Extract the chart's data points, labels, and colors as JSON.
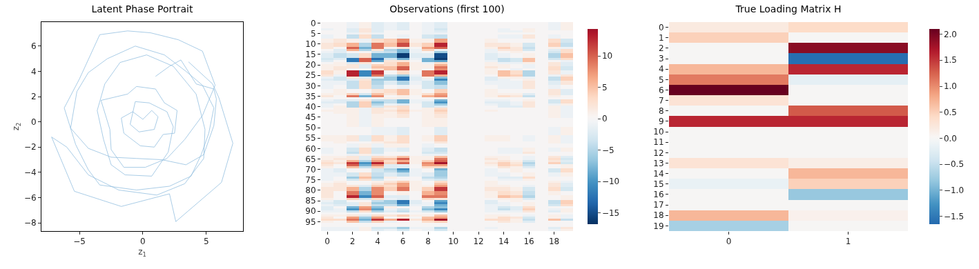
{
  "chart_data": [
    {
      "type": "line",
      "title": "Latent Phase Portrait",
      "xlabel": "z$_{1}$",
      "ylabel": "z$_{2}$",
      "color": "#93bfdf",
      "x": [
        1.0,
        2.1,
        3.0,
        4.2,
        5.6,
        5.8,
        5.6,
        4.8,
        3.4,
        1.5,
        -0.5,
        -2.5,
        -4.3,
        -5.7,
        -5.2,
        -4.3,
        -2.8,
        -0.6,
        1.7,
        3.4,
        4.7,
        5.6,
        5.2,
        4.6,
        3.8,
        2.1,
        -0.5,
        -3.4,
        -4.3,
        -5.3,
        -6.2,
        -5.0,
        -3.4,
        -1.2,
        0.6,
        2.8,
        4.7,
        5.7,
        4.7,
        3.3,
        1.9,
        0.2,
        -1.5,
        -2.5,
        -2.6,
        -3.3,
        -1.2,
        -0.5,
        1.0,
        1.7,
        2.7,
        2.5,
        1.6,
        0.9,
        -0.2,
        -1.5,
        -1.7,
        -0.8,
        0.0,
        0.7,
        1.2,
        0.9,
        -0.3,
        -1.0,
        -0.6,
        0.5,
        1.9,
        2.4,
        2.0,
        0.7,
        -1.4,
        -2.5,
        -3.1,
        -3.6,
        -3.0,
        -1.8,
        0.3,
        2.4,
        4.2,
        4.9,
        4.8,
        3.3,
        1.1,
        -1.9,
        -4.3,
        -6.0,
        -7.2,
        -5.4,
        -1.7,
        2.1,
        2.6,
        6.2,
        7.1,
        6.0,
        5.5,
        3.6
      ],
      "values": [
        3.6,
        4.4,
        4.9,
        3.0,
        2.6,
        1.8,
        -0.3,
        -2.6,
        -3.4,
        -3.0,
        -2.9,
        -2.8,
        -2.1,
        -0.5,
        2.4,
        3.9,
        5.0,
        6.0,
        5.3,
        4.0,
        2.9,
        1.1,
        -0.9,
        -2.6,
        -4.3,
        -5.1,
        -5.4,
        -5.0,
        -3.8,
        -1.8,
        1.1,
        3.4,
        6.9,
        7.2,
        7.05,
        6.5,
        5.6,
        2.9,
        0.5,
        -1.4,
        -2.9,
        -3.6,
        -3.6,
        -2.2,
        -0.6,
        1.7,
        2.2,
        2.8,
        2.6,
        1.5,
        0.9,
        -0.9,
        -1.0,
        -2.0,
        -1.9,
        -0.9,
        0.3,
        0.8,
        0.2,
        0.9,
        0.4,
        -0.6,
        -0.8,
        -0.2,
        1.6,
        1.5,
        0.8,
        -0.4,
        -2.4,
        -4.3,
        -4.2,
        -3.4,
        -1.4,
        0.9,
        3.0,
        4.7,
        5.3,
        4.4,
        2.2,
        -0.6,
        -2.9,
        -4.9,
        -5.8,
        -5.4,
        -4.2,
        -2.0,
        -1.2,
        -5.5,
        -6.7,
        -5.7,
        -7.9,
        -4.8,
        -1.7,
        1.9,
        3.0,
        4.75
      ],
      "xlim": [
        -8,
        7.9
      ],
      "ylim": [
        -8.65,
        7.9
      ],
      "xticks": [
        {
          "value": -5,
          "label": "−5"
        },
        0,
        5
      ],
      "yticks": [
        {
          "value": -8,
          "label": "−8"
        },
        {
          "value": -6,
          "label": "−6"
        },
        {
          "value": -4,
          "label": "−4"
        },
        {
          "value": -2,
          "label": "−2"
        },
        0,
        2,
        4,
        6
      ]
    },
    {
      "type": "heatmap",
      "title": "Observations (first 100)",
      "categories": [
        "0",
        null,
        "2",
        null,
        "4",
        null,
        "6",
        null,
        "8",
        null,
        "10",
        null,
        "12",
        null,
        "14",
        null,
        "16",
        null,
        "18",
        null
      ],
      "y_categories": [
        "0",
        null,
        null,
        null,
        null,
        "5",
        null,
        null,
        null,
        null,
        "10",
        null,
        null,
        null,
        null,
        "15",
        null,
        null,
        null,
        null,
        "20",
        null,
        null,
        null,
        null,
        "25",
        null,
        null,
        null,
        null,
        "30",
        null,
        null,
        null,
        null,
        "35",
        null,
        null,
        null,
        null,
        "40",
        null,
        null,
        null,
        null,
        "45",
        null,
        null,
        null,
        null,
        "50",
        null,
        null,
        null,
        null,
        "55",
        null,
        null,
        null,
        null,
        "60",
        null,
        null,
        null,
        null,
        "65",
        null,
        null,
        null,
        null,
        "70",
        null,
        null,
        null,
        null,
        "75",
        null,
        null,
        null,
        null,
        "80",
        null,
        null,
        null,
        null,
        "85",
        null,
        null,
        null,
        null,
        "90",
        null,
        null,
        null,
        null,
        "95",
        null,
        null,
        null,
        null
      ],
      "clim": [
        -16.8,
        14.3
      ],
      "cticks": [
        {
          "value": -15,
          "label": "−15"
        },
        {
          "value": -10,
          "label": "−10"
        },
        {
          "value": -5,
          "label": "−5"
        },
        0,
        5,
        10
      ],
      "cells": [
        [
          0,
          0,
          -1,
          1,
          -2,
          -1,
          -2,
          0,
          -1,
          -2,
          0,
          0,
          0,
          0,
          0,
          0,
          0,
          0,
          -1,
          1
        ],
        [
          0,
          0,
          -1,
          1,
          -2,
          -1,
          -2,
          0,
          -1,
          -2,
          0,
          0,
          0,
          0,
          0,
          0,
          0,
          0,
          -1,
          1
        ],
        [
          0,
          0,
          -1,
          1,
          -2,
          -1,
          -2,
          0,
          -1,
          -2,
          0,
          0,
          0,
          0,
          0,
          0,
          0,
          0,
          -1,
          1
        ],
        [
          -1,
          0,
          -2,
          2,
          -2,
          -1,
          -2,
          0,
          -1,
          -3,
          0,
          0,
          0,
          0,
          -1,
          0,
          1,
          0,
          -1,
          1
        ],
        [
          0,
          0,
          -2,
          2,
          -2,
          0,
          0,
          0,
          -1,
          -2,
          0,
          0,
          0,
          0,
          -1,
          -1,
          1,
          0,
          0,
          0
        ],
        [
          0,
          0,
          -1,
          1,
          -1,
          0,
          0,
          0,
          -1,
          -1,
          0,
          0,
          0,
          0,
          0,
          0,
          0,
          0,
          0,
          0
        ],
        [
          -1,
          0,
          -4,
          3,
          -4,
          0,
          -1,
          0,
          -3,
          -4,
          0,
          0,
          0,
          0,
          -1,
          -1,
          2,
          0,
          -1,
          0
        ],
        [
          -1,
          0,
          -4,
          3,
          -4,
          0,
          -1,
          0,
          -3,
          -4,
          0,
          0,
          0,
          0,
          -1,
          -1,
          2,
          0,
          -1,
          0
        ],
        [
          1,
          2,
          1,
          -1,
          3,
          4,
          8,
          1,
          1,
          7,
          0,
          0,
          0,
          1,
          0,
          0,
          0,
          0,
          3,
          -3
        ],
        [
          1,
          2,
          1,
          -1,
          3,
          4,
          8,
          1,
          1,
          7,
          0,
          0,
          0,
          1,
          0,
          0,
          0,
          0,
          3,
          -3
        ],
        [
          2,
          3,
          6,
          -5,
          9,
          5,
          11,
          2,
          4,
          13,
          0,
          0,
          0,
          2,
          2,
          1,
          -3,
          0,
          4,
          -4
        ],
        [
          2,
          3,
          6,
          -5,
          9,
          5,
          11,
          2,
          4,
          13,
          0,
          0,
          0,
          2,
          2,
          1,
          -3,
          0,
          4,
          -4
        ],
        [
          2,
          0,
          10,
          -8,
          9,
          0,
          2,
          0,
          7,
          10,
          0,
          0,
          0,
          1,
          4,
          2,
          -4,
          0,
          1,
          -1
        ],
        [
          0,
          -2,
          6,
          -5,
          2,
          -5,
          -8,
          -1,
          4,
          -1,
          0,
          0,
          0,
          -1,
          2,
          2,
          -3,
          0,
          -2,
          3
        ],
        [
          -1,
          -2,
          0,
          0,
          -3,
          -4,
          -8,
          -1,
          0,
          -6,
          0,
          0,
          0,
          -1,
          0,
          1,
          0,
          0,
          -3,
          3
        ],
        [
          -2,
          -4,
          -3,
          3,
          -8,
          -8,
          -16,
          -2,
          -2,
          -15,
          0,
          0,
          0,
          -2,
          -1,
          0,
          1,
          0,
          -5,
          5
        ],
        [
          -2,
          -4,
          -3,
          3,
          -8,
          -8,
          -16,
          -2,
          -2,
          -15,
          0,
          0,
          0,
          -2,
          -1,
          0,
          1,
          0,
          -5,
          5
        ],
        [
          -3,
          -2,
          -12,
          10,
          -13,
          -3,
          -8,
          -1,
          -8,
          -16,
          0,
          0,
          0,
          -2,
          -4,
          -3,
          5,
          0,
          -3,
          3
        ],
        [
          -2,
          0,
          -12,
          10,
          -9,
          2,
          2,
          0,
          -8,
          -9,
          0,
          0,
          0,
          -1,
          -4,
          -3,
          5,
          0,
          0,
          -1
        ],
        [
          0,
          1,
          -2,
          2,
          0,
          3,
          6,
          1,
          -1,
          3,
          0,
          0,
          0,
          1,
          -1,
          -1,
          1,
          0,
          2,
          -2
        ],
        [
          1,
          1,
          2,
          -2,
          4,
          3,
          6,
          1,
          1,
          6,
          0,
          0,
          0,
          1,
          1,
          0,
          -1,
          0,
          2,
          -2
        ],
        [
          1,
          2,
          2,
          -2,
          5,
          5,
          10,
          1,
          1,
          9,
          0,
          0,
          0,
          2,
          1,
          0,
          -1,
          0,
          3,
          -3
        ],
        [
          1,
          2,
          0,
          0,
          3,
          5,
          10,
          1,
          0,
          8,
          0,
          0,
          0,
          1,
          0,
          -1,
          0,
          0,
          3,
          -3
        ],
        [
          3,
          1,
          13,
          -11,
          12,
          0,
          3,
          0,
          9,
          13,
          0,
          0,
          0,
          1,
          5,
          3,
          -5,
          0,
          2,
          -1
        ],
        [
          3,
          1,
          13,
          -11,
          12,
          0,
          3,
          0,
          9,
          13,
          0,
          0,
          0,
          1,
          5,
          3,
          -5,
          0,
          2,
          -1
        ],
        [
          2,
          -1,
          13,
          -11,
          9,
          -4,
          -6,
          -1,
          9,
          6,
          0,
          0,
          0,
          0,
          5,
          4,
          -5,
          0,
          -1,
          2
        ],
        [
          -1,
          -3,
          2,
          -2,
          -2,
          -6,
          -12,
          -2,
          1,
          -7,
          0,
          0,
          0,
          -2,
          1,
          1,
          -1,
          0,
          -4,
          4
        ],
        [
          -2,
          -3,
          -2,
          2,
          -6,
          -6,
          -12,
          -2,
          -1,
          -11,
          0,
          0,
          0,
          -2,
          -1,
          0,
          1,
          0,
          -4,
          4
        ],
        [
          -1,
          -1,
          -4,
          3,
          -5,
          -2,
          -5,
          -1,
          -3,
          -7,
          0,
          0,
          0,
          -1,
          -1,
          -1,
          2,
          0,
          -2,
          2
        ],
        [
          -1,
          -1,
          -4,
          3,
          -5,
          -2,
          -5,
          -1,
          -3,
          -7,
          0,
          0,
          0,
          -1,
          -1,
          -1,
          2,
          0,
          -2,
          2
        ],
        [
          -1,
          0,
          -4,
          3,
          -4,
          0,
          -1,
          0,
          -3,
          -4,
          0,
          0,
          0,
          0,
          -1,
          -1,
          2,
          0,
          -1,
          0
        ],
        [
          -1,
          0,
          -4,
          3,
          -4,
          0,
          -1,
          0,
          -3,
          -4,
          0,
          0,
          0,
          0,
          -1,
          -1,
          2,
          0,
          -1,
          0
        ],
        [
          0,
          1,
          0,
          0,
          2,
          3,
          5,
          1,
          0,
          4,
          0,
          0,
          0,
          1,
          0,
          0,
          0,
          0,
          2,
          -2
        ],
        [
          0,
          1,
          0,
          0,
          2,
          3,
          5,
          1,
          0,
          4,
          0,
          0,
          0,
          1,
          0,
          0,
          0,
          0,
          2,
          -2
        ],
        [
          1,
          1,
          4,
          -3,
          5,
          2,
          5,
          1,
          3,
          7,
          0,
          0,
          0,
          1,
          1,
          1,
          -2,
          0,
          2,
          -2
        ],
        [
          2,
          0,
          9,
          -8,
          8,
          0,
          1,
          0,
          6,
          8,
          0,
          0,
          0,
          1,
          3,
          2,
          -4,
          0,
          1,
          0
        ],
        [
          0,
          0,
          0,
          0,
          0,
          1,
          1,
          0,
          0,
          1,
          0,
          0,
          0,
          0,
          0,
          0,
          0,
          0,
          0,
          0
        ],
        [
          -1,
          -2,
          -2,
          2,
          -4,
          -4,
          -8,
          -1,
          -1,
          -8,
          0,
          0,
          0,
          -1,
          -1,
          0,
          1,
          0,
          -3,
          3
        ],
        [
          -2,
          -2,
          -5,
          4,
          -7,
          -4,
          -8,
          -1,
          -3,
          -10,
          0,
          0,
          0,
          -2,
          -2,
          -1,
          2,
          0,
          -3,
          3
        ],
        [
          -1,
          0,
          -5,
          4,
          -5,
          -1,
          -2,
          0,
          -3,
          -6,
          0,
          0,
          0,
          -1,
          -2,
          -1,
          2,
          0,
          -1,
          1
        ],
        [
          -1,
          1,
          -5,
          4,
          -3,
          2,
          3,
          0,
          -3,
          -2,
          0,
          0,
          0,
          0,
          -2,
          -2,
          2,
          0,
          1,
          -1
        ],
        [
          0,
          1,
          1,
          -1,
          2,
          1,
          3,
          0,
          1,
          3,
          0,
          0,
          0,
          0,
          0,
          0,
          0,
          0,
          1,
          -1
        ],
        [
          1,
          1,
          1,
          -1,
          2,
          2,
          4,
          1,
          1,
          4,
          0,
          0,
          0,
          1,
          0,
          0,
          0,
          0,
          1,
          -1
        ],
        [
          0,
          1,
          1,
          -1,
          2,
          1,
          3,
          0,
          1,
          3,
          0,
          0,
          0,
          0,
          0,
          0,
          0,
          0,
          1,
          -1
        ],
        [
          0,
          0,
          1,
          -1,
          1,
          1,
          2,
          0,
          1,
          2,
          0,
          0,
          0,
          0,
          0,
          0,
          0,
          0,
          1,
          -1
        ],
        [
          0,
          0,
          1,
          -1,
          1,
          1,
          2,
          0,
          1,
          2,
          0,
          0,
          0,
          0,
          0,
          0,
          0,
          0,
          1,
          -1
        ],
        [
          0,
          0,
          1,
          -1,
          1,
          0,
          0,
          0,
          1,
          1,
          0,
          0,
          0,
          0,
          0,
          0,
          0,
          0,
          0,
          0
        ],
        [
          0,
          0,
          1,
          -1,
          1,
          0,
          0,
          0,
          1,
          1,
          0,
          0,
          0,
          0,
          0,
          0,
          0,
          0,
          0,
          0
        ],
        [
          0,
          0,
          1,
          -1,
          1,
          0,
          0,
          0,
          1,
          1,
          0,
          0,
          0,
          0,
          0,
          0,
          0,
          0,
          0,
          0
        ],
        [
          0,
          0,
          1,
          -1,
          1,
          0,
          0,
          0,
          1,
          1,
          0,
          0,
          0,
          0,
          0,
          0,
          0,
          0,
          0,
          0
        ],
        [
          0,
          0,
          0,
          0,
          -1,
          -1,
          -2,
          0,
          0,
          -2,
          0,
          0,
          0,
          0,
          0,
          0,
          0,
          0,
          -1,
          1
        ],
        [
          0,
          0,
          0,
          0,
          -1,
          -1,
          -2,
          0,
          0,
          -2,
          0,
          0,
          0,
          0,
          0,
          0,
          0,
          0,
          -1,
          1
        ],
        [
          0,
          0,
          0,
          0,
          -1,
          -1,
          -2,
          0,
          0,
          -2,
          0,
          0,
          0,
          0,
          0,
          0,
          0,
          0,
          -1,
          1
        ],
        [
          0,
          0,
          0,
          0,
          -1,
          -1,
          -2,
          0,
          0,
          -2,
          0,
          0,
          0,
          0,
          0,
          0,
          0,
          0,
          -1,
          1
        ],
        [
          1,
          1,
          2,
          -2,
          3,
          1,
          3,
          0,
          1,
          4,
          0,
          0,
          0,
          1,
          1,
          0,
          -1,
          0,
          1,
          -1
        ],
        [
          1,
          1,
          2,
          -2,
          3,
          1,
          3,
          0,
          1,
          4,
          0,
          0,
          0,
          1,
          1,
          0,
          -1,
          0,
          1,
          -1
        ],
        [
          1,
          1,
          2,
          -2,
          3,
          1,
          3,
          0,
          1,
          4,
          0,
          0,
          0,
          1,
          1,
          0,
          -1,
          0,
          1,
          -1
        ],
        [
          0,
          1,
          0,
          0,
          1,
          2,
          3,
          0,
          0,
          2,
          0,
          0,
          0,
          0,
          0,
          0,
          0,
          0,
          1,
          -1
        ],
        [
          0,
          0,
          -1,
          1,
          -1,
          1,
          1,
          0,
          -1,
          0,
          0,
          0,
          0,
          0,
          0,
          0,
          0,
          0,
          0,
          0
        ],
        [
          0,
          0,
          -1,
          1,
          -1,
          1,
          1,
          0,
          -1,
          0,
          0,
          0,
          0,
          0,
          0,
          0,
          0,
          0,
          0,
          0
        ],
        [
          -1,
          0,
          -3,
          3,
          -3,
          -1,
          -2,
          0,
          -2,
          -4,
          0,
          0,
          0,
          0,
          -1,
          -1,
          1,
          0,
          -1,
          1
        ],
        [
          -1,
          0,
          -3,
          3,
          -3,
          -1,
          -2,
          0,
          -2,
          -4,
          0,
          0,
          0,
          0,
          -1,
          -1,
          1,
          0,
          -1,
          1
        ],
        [
          -1,
          0,
          -4,
          3,
          -3,
          0,
          0,
          0,
          -3,
          -3,
          0,
          0,
          0,
          0,
          -1,
          -1,
          2,
          0,
          0,
          0
        ],
        [
          0,
          0,
          -1,
          1,
          -1,
          0,
          0,
          0,
          -1,
          -1,
          0,
          0,
          0,
          0,
          0,
          0,
          0,
          0,
          0,
          0
        ],
        [
          1,
          1,
          2,
          -2,
          3,
          2,
          5,
          1,
          1,
          5,
          0,
          0,
          0,
          1,
          1,
          0,
          -1,
          0,
          2,
          -2
        ],
        [
          1,
          2,
          2,
          -2,
          5,
          5,
          10,
          1,
          1,
          9,
          0,
          0,
          0,
          2,
          1,
          0,
          -1,
          0,
          3,
          -3
        ],
        [
          2,
          1,
          6,
          -5,
          7,
          3,
          6,
          1,
          4,
          10,
          0,
          0,
          0,
          1,
          2,
          1,
          -3,
          0,
          2,
          -2
        ],
        [
          3,
          2,
          12,
          -10,
          13,
          4,
          10,
          1,
          8,
          14,
          0,
          0,
          0,
          2,
          4,
          2,
          -5,
          0,
          4,
          -3
        ],
        [
          2,
          0,
          10,
          -8,
          8,
          -2,
          -2,
          0,
          7,
          7,
          0,
          0,
          0,
          1,
          4,
          3,
          -4,
          0,
          0,
          1
        ],
        [
          1,
          0,
          5,
          -4,
          4,
          -2,
          -2,
          0,
          3,
          3,
          0,
          0,
          0,
          0,
          2,
          1,
          -2,
          0,
          0,
          1
        ],
        [
          -1,
          -2,
          0,
          0,
          -3,
          -5,
          -10,
          -1,
          0,
          -8,
          0,
          0,
          0,
          -1,
          0,
          1,
          0,
          0,
          -3,
          3
        ],
        [
          -1,
          -2,
          0,
          0,
          -3,
          -4,
          -8,
          -1,
          0,
          -6,
          0,
          0,
          0,
          -1,
          0,
          1,
          0,
          0,
          -3,
          3
        ],
        [
          -1,
          -1,
          -3,
          3,
          -4,
          -2,
          -4,
          -1,
          -2,
          -6,
          0,
          0,
          0,
          -1,
          -1,
          0,
          1,
          0,
          -1,
          1
        ],
        [
          -1,
          -1,
          -3,
          3,
          -4,
          -2,
          -4,
          -1,
          -2,
          -6,
          0,
          0,
          0,
          -1,
          -1,
          0,
          1,
          0,
          -1,
          1
        ],
        [
          -1,
          0,
          -6,
          5,
          -5,
          1,
          0,
          0,
          -4,
          -5,
          0,
          0,
          0,
          0,
          -2,
          -2,
          3,
          0,
          0,
          0
        ],
        [
          -1,
          0,
          -3,
          3,
          -3,
          0,
          0,
          0,
          -2,
          -3,
          0,
          0,
          0,
          0,
          -1,
          -1,
          1,
          0,
          0,
          0
        ],
        [
          0,
          1,
          0,
          0,
          1,
          2,
          4,
          1,
          0,
          3,
          0,
          0,
          0,
          1,
          0,
          0,
          0,
          0,
          1,
          -1
        ],
        [
          1,
          2,
          0,
          0,
          2,
          4,
          7,
          1,
          0,
          5,
          0,
          0,
          0,
          1,
          0,
          0,
          0,
          0,
          2,
          -2
        ],
        [
          1,
          2,
          2,
          -2,
          4,
          3,
          7,
          1,
          1,
          7,
          0,
          0,
          0,
          1,
          1,
          0,
          -1,
          0,
          2,
          -2
        ],
        [
          2,
          2,
          6,
          -5,
          8,
          4,
          9,
          1,
          4,
          12,
          0,
          0,
          0,
          2,
          2,
          1,
          -3,
          0,
          3,
          -3
        ],
        [
          2,
          2,
          6,
          -5,
          8,
          4,
          9,
          1,
          4,
          12,
          0,
          0,
          0,
          2,
          2,
          1,
          -3,
          0,
          3,
          -3
        ],
        [
          2,
          0,
          9,
          -8,
          8,
          0,
          1,
          0,
          6,
          8,
          0,
          0,
          0,
          1,
          3,
          2,
          -4,
          0,
          1,
          0
        ],
        [
          2,
          0,
          9,
          -8,
          8,
          0,
          1,
          0,
          6,
          8,
          0,
          0,
          0,
          1,
          3,
          2,
          -4,
          0,
          1,
          0
        ],
        [
          2,
          0,
          13,
          -11,
          10,
          -2,
          -2,
          0,
          9,
          9,
          0,
          0,
          0,
          1,
          5,
          4,
          -5,
          0,
          0,
          1
        ],
        [
          1,
          0,
          4,
          -3,
          3,
          -1,
          -2,
          0,
          3,
          2,
          0,
          0,
          0,
          0,
          1,
          1,
          -2,
          0,
          0,
          1
        ],
        [
          -1,
          -3,
          0,
          0,
          -4,
          -6,
          -12,
          -2,
          0,
          -9,
          0,
          0,
          0,
          -2,
          0,
          1,
          0,
          0,
          -4,
          4
        ],
        [
          -2,
          -3,
          -2,
          2,
          -6,
          -6,
          -12,
          -2,
          -1,
          -11,
          0,
          0,
          0,
          -2,
          -1,
          0,
          1,
          0,
          -4,
          4
        ],
        [
          -1,
          -2,
          -2,
          2,
          -4,
          -4,
          -8,
          -1,
          -1,
          -8,
          0,
          0,
          0,
          -1,
          -1,
          0,
          1,
          0,
          -3,
          3
        ],
        [
          -2,
          0,
          -8,
          7,
          -7,
          1,
          0,
          0,
          -5,
          -7,
          0,
          0,
          0,
          -1,
          -3,
          -2,
          3,
          0,
          0,
          0
        ],
        [
          -2,
          -1,
          -10,
          8,
          -9,
          -1,
          -3,
          0,
          -7,
          -11,
          0,
          0,
          0,
          -1,
          -4,
          -2,
          4,
          0,
          -1,
          1
        ],
        [
          -1,
          -1,
          -4,
          3,
          -5,
          -2,
          -4,
          -1,
          -3,
          -6,
          0,
          0,
          0,
          -1,
          -1,
          -1,
          2,
          0,
          -2,
          1
        ],
        [
          0,
          0,
          0,
          0,
          0,
          0,
          0,
          0,
          0,
          0,
          0,
          0,
          0,
          0,
          0,
          0,
          0,
          0,
          0,
          0
        ],
        [
          1,
          1,
          2,
          -2,
          3,
          2,
          4,
          1,
          1,
          5,
          0,
          0,
          0,
          1,
          1,
          0,
          -1,
          0,
          1,
          -1
        ],
        [
          2,
          0,
          7,
          -6,
          7,
          0,
          2,
          0,
          5,
          7,
          0,
          0,
          0,
          1,
          3,
          2,
          -3,
          0,
          1,
          -1
        ],
        [
          3,
          3,
          9,
          -8,
          12,
          6,
          13,
          2,
          6,
          14,
          0,
          0,
          0,
          3,
          3,
          1,
          -4,
          0,
          5,
          -4
        ],
        [
          1,
          0,
          5,
          -4,
          4,
          -1,
          0,
          0,
          3,
          4,
          0,
          0,
          0,
          0,
          2,
          1,
          -2,
          0,
          0,
          0
        ],
        [
          0,
          0,
          0,
          0,
          0,
          0,
          0,
          0,
          0,
          0,
          0,
          0,
          0,
          0,
          0,
          0,
          0,
          0,
          0,
          0
        ],
        [
          0,
          0,
          0,
          0,
          0,
          0,
          0,
          0,
          0,
          0,
          0,
          0,
          0,
          0,
          0,
          0,
          0,
          0,
          0,
          0
        ],
        [
          -1,
          -1,
          -1,
          1,
          -3,
          -3,
          -6,
          -1,
          -1,
          -5,
          0,
          0,
          0,
          -1,
          0,
          0,
          0,
          0,
          -2,
          2
        ],
        [
          -1,
          -1,
          -1,
          1,
          -2,
          -1,
          -3,
          0,
          -1,
          -3,
          0,
          0,
          0,
          0,
          0,
          0,
          0,
          0,
          -1,
          1
        ]
      ]
    },
    {
      "type": "heatmap",
      "title": "True Loading Matrix H",
      "categories": [
        "0",
        "1"
      ],
      "y_categories": [
        "0",
        "1",
        "2",
        "3",
        "4",
        "5",
        "6",
        "7",
        "8",
        "9",
        "10",
        "11",
        "12",
        "13",
        "14",
        "15",
        "16",
        "17",
        "18",
        "19"
      ],
      "clim": [
        -1.65,
        2.1
      ],
      "cticks": [
        {
          "value": -1.5,
          "label": "−1.5"
        },
        {
          "value": -1,
          "label": "−1.0"
        },
        {
          "value": -0.5,
          "label": "−0.5"
        },
        {
          "value": 0,
          "label": "0.0"
        },
        0.5,
        {
          "value": 1,
          "label": "1.0"
        },
        1.5,
        {
          "value": 2,
          "label": "2.0"
        }
      ],
      "cells": [
        [
          0.2,
          0.4
        ],
        [
          0.5,
          0
        ],
        [
          0,
          1.9
        ],
        [
          0,
          -1.6
        ],
        [
          0.7,
          1.6
        ],
        [
          1.1,
          -0.2
        ],
        [
          2.1,
          0
        ],
        [
          0.3,
          0
        ],
        [
          0,
          1.3
        ],
        [
          1.6,
          1.6
        ],
        [
          0,
          0
        ],
        [
          0,
          0
        ],
        [
          0,
          0
        ],
        [
          0.3,
          0.15
        ],
        [
          0,
          0.7
        ],
        [
          -0.15,
          0.5
        ],
        [
          0,
          -0.8
        ],
        [
          0,
          0
        ],
        [
          0.7,
          0.1
        ],
        [
          -0.7,
          0
        ]
      ]
    }
  ]
}
